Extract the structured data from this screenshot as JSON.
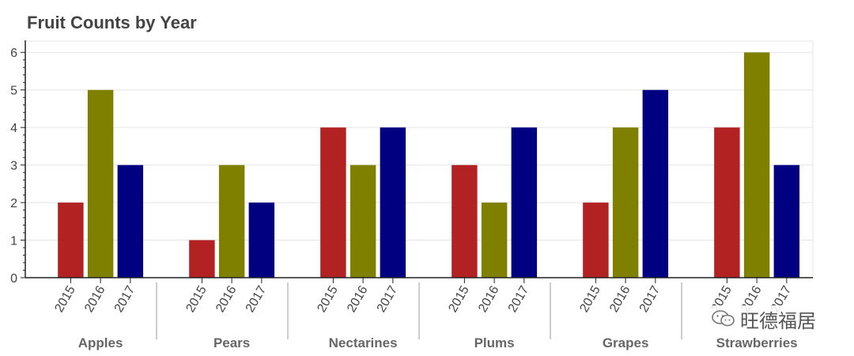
{
  "chart_data": {
    "type": "bar",
    "title": "Fruit Counts by Year",
    "xlabel": "",
    "ylabel": "",
    "categories": [
      "Apples",
      "Pears",
      "Nectarines",
      "Plums",
      "Grapes",
      "Strawberries"
    ],
    "subcategories": [
      "2015",
      "2016",
      "2017"
    ],
    "series": [
      {
        "values": [
          2,
          1,
          4,
          3,
          2,
          4
        ],
        "color": "#b22222"
      },
      {
        "values": [
          5,
          3,
          3,
          2,
          4,
          6
        ],
        "color": "#808000"
      },
      {
        "values": [
          3,
          2,
          4,
          4,
          5,
          3
        ],
        "color": "#000080"
      }
    ],
    "ylim": [
      0,
      6.3
    ],
    "yticks": [
      0,
      1,
      2,
      3,
      4,
      5,
      6
    ],
    "grid": true,
    "legend": "none"
  },
  "watermark": {
    "icon": "wechat-icon",
    "text": "旺德福居"
  }
}
